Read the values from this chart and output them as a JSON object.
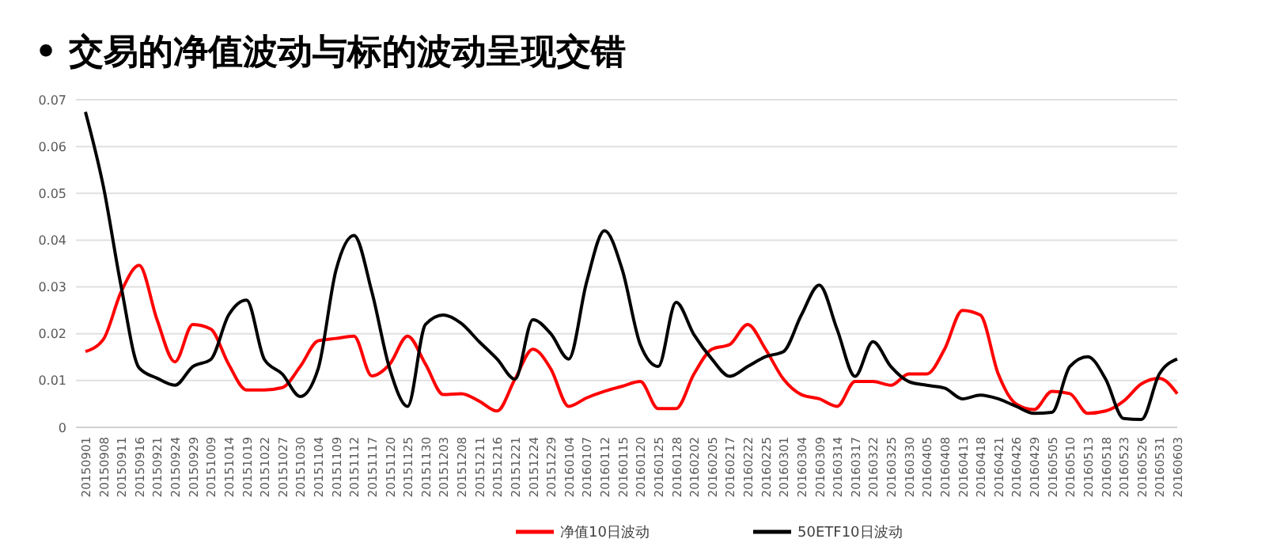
{
  "chart_data": {
    "type": "line",
    "title": "• 交易的净值波动与标的波动呈现交错",
    "categories": [
      "20150901",
      "20150908",
      "20150911",
      "20150916",
      "20150921",
      "20150924",
      "20150929",
      "20151009",
      "20151014",
      "20151019",
      "20151022",
      "20151027",
      "20151030",
      "20151104",
      "20151109",
      "20151112",
      "20151117",
      "20151120",
      "20151125",
      "20151130",
      "20151203",
      "20151208",
      "20151211",
      "20151216",
      "20151221",
      "20151224",
      "20151229",
      "20160104",
      "20160107",
      "20160112",
      "20160115",
      "20160120",
      "20160125",
      "20160128",
      "20160202",
      "20160205",
      "20160217",
      "20160222",
      "20160225",
      "20160301",
      "20160304",
      "20160309",
      "20160314",
      "20160317",
      "20160322",
      "20160325",
      "20160330",
      "20160405",
      "20160408",
      "20160413",
      "20160418",
      "20160421",
      "20160426",
      "20160429",
      "20160505",
      "20160510",
      "20160513",
      "20160518",
      "20160523",
      "20160526",
      "20160531",
      "20160603"
    ],
    "series": [
      {
        "name": "净值10日波动",
        "color": "#ff0000",
        "values": [
          0.0162,
          0.0188,
          0.029,
          0.0346,
          0.023,
          0.014,
          0.022,
          0.021,
          0.0135,
          0.008,
          0.008,
          0.0085,
          0.013,
          0.0185,
          0.019,
          0.0195,
          0.011,
          0.0135,
          0.0195,
          0.0135,
          0.007,
          0.0072,
          0.0056,
          0.0035,
          0.0103,
          0.0167,
          0.0125,
          0.0045,
          0.0063,
          0.0077,
          0.0088,
          0.0098,
          0.004,
          0.004,
          0.0114,
          0.0167,
          0.0177,
          0.022,
          0.0167,
          0.0103,
          0.007,
          0.0061,
          0.0045,
          0.0098,
          0.0098,
          0.009,
          0.0114,
          0.0114,
          0.0167,
          0.025,
          0.024,
          0.0114,
          0.005,
          0.0038,
          0.0077,
          0.0072,
          0.003,
          0.0035,
          0.0056,
          0.0093,
          0.0105,
          0.0072
        ]
      },
      {
        "name": "50ETF10日波动",
        "color": "#000000",
        "values": [
          0.0674,
          0.0515,
          0.03,
          0.0127,
          0.0105,
          0.009,
          0.013,
          0.0145,
          0.024,
          0.0272,
          0.0145,
          0.0114,
          0.0066,
          0.0125,
          0.0336,
          0.041,
          0.029,
          0.0125,
          0.0045,
          0.022,
          0.024,
          0.0222,
          0.0183,
          0.0146,
          0.0103,
          0.023,
          0.02,
          0.0146,
          0.031,
          0.042,
          0.0336,
          0.0177,
          0.013,
          0.0267,
          0.0198,
          0.0146,
          0.0109,
          0.013,
          0.0151,
          0.0162,
          0.024,
          0.0304,
          0.0209,
          0.0109,
          0.0183,
          0.013,
          0.0098,
          0.009,
          0.0084,
          0.0061,
          0.0069,
          0.0061,
          0.0045,
          0.003,
          0.0032,
          0.013,
          0.0151,
          0.0103,
          0.0019,
          0.0017,
          0.0114,
          0.0146
        ]
      }
    ],
    "ylim": [
      0,
      0.07
    ],
    "yticks": [
      0,
      0.01,
      0.02,
      0.03,
      0.04,
      0.05,
      0.06,
      0.07
    ],
    "grid": "y",
    "legend": "bottom",
    "marker": "none",
    "line_style": "solid"
  }
}
